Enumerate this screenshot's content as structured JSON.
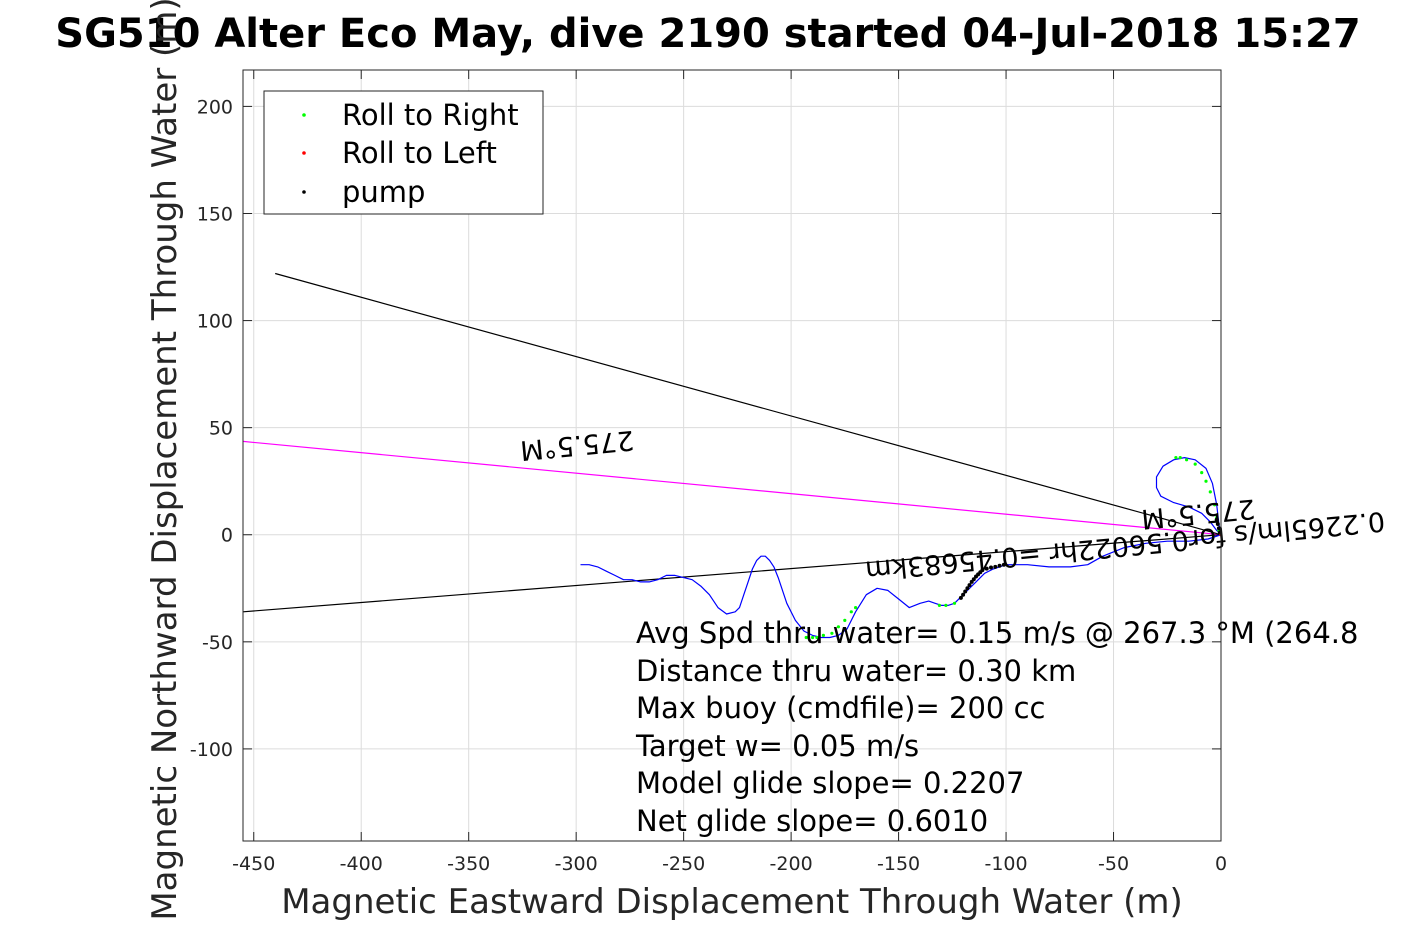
{
  "chart_data": {
    "type": "scatter",
    "title": "SG510 Alter Eco May, dive 2190 started 04-Jul-2018 15:27",
    "xlabel": "Magnetic Eastward Displacement Through Water (m)",
    "ylabel": "Magnetic Northward Displacement Through Water (m)",
    "xlim": [
      -455,
      0
    ],
    "ylim": [
      -143,
      217
    ],
    "xticks": [
      -450,
      -400,
      -350,
      -300,
      -250,
      -200,
      -150,
      -100,
      -50,
      0
    ],
    "yticks": [
      -100,
      -50,
      0,
      50,
      100,
      150,
      200
    ],
    "grid": true,
    "legend_location": "top-left",
    "legend": [
      {
        "label": "Roll to Right",
        "color": "#00ff00"
      },
      {
        "label": "Roll to Left",
        "color": "#ff0000"
      },
      {
        "label": "pump",
        "color": "#000000"
      }
    ],
    "track": {
      "color": "#0000ff",
      "x": [
        0,
        -2,
        -5,
        -9,
        -15,
        -22,
        -28,
        -30,
        -30,
        -27,
        -22,
        -17,
        -12,
        -7,
        -4,
        -2,
        -1,
        0,
        -6,
        -15,
        -25,
        -35,
        -45,
        -55,
        -62,
        -70,
        -80,
        -90,
        -100,
        -106,
        -110,
        -114,
        -118,
        -121,
        -124,
        -127,
        -130,
        -133,
        -136,
        -140,
        -145,
        -150,
        -155,
        -160,
        -165,
        -170,
        -174,
        -178,
        -182,
        -186,
        -190,
        -194,
        -198,
        -202,
        -206,
        -208,
        -210,
        -212,
        -214,
        -216,
        -218,
        -220,
        -222,
        -224,
        -226,
        -230,
        -234,
        -238,
        -242,
        -246,
        -250,
        -254,
        -258,
        -262,
        -266,
        -270,
        -274,
        -278,
        -282,
        -286,
        -290,
        -294,
        -298
      ],
      "y": [
        0,
        2,
        6,
        10,
        13,
        15,
        18,
        22,
        27,
        32,
        35,
        36,
        35,
        31,
        24,
        14,
        5,
        0,
        -2,
        -3,
        -3,
        -4,
        -6,
        -10,
        -14,
        -15,
        -15,
        -14,
        -14,
        -16,
        -18,
        -22,
        -26,
        -29,
        -32,
        -33,
        -33,
        -32,
        -31,
        -32,
        -34,
        -30,
        -26,
        -25,
        -28,
        -36,
        -44,
        -47,
        -48,
        -48,
        -47,
        -45,
        -40,
        -32,
        -20,
        -15,
        -12,
        -10,
        -10,
        -12,
        -16,
        -22,
        -28,
        -34,
        -36,
        -37,
        -34,
        -28,
        -24,
        -21,
        -20,
        -19,
        -19,
        -21,
        -22,
        -22,
        -21,
        -21,
        -19,
        -17,
        -15,
        -14,
        -14
      ]
    },
    "roll_right": {
      "color": "#00ff00",
      "x": [
        -1,
        -2,
        -3,
        -5,
        -7,
        -9,
        -12,
        -16,
        -19,
        -21,
        -124,
        -128,
        -131,
        -170,
        -172,
        -175,
        -178,
        -181,
        -185,
        -188,
        -190,
        -193
      ],
      "y": [
        2,
        8,
        14,
        20,
        25,
        29,
        33,
        35,
        36,
        36,
        -32,
        -33,
        -33,
        -34,
        -36,
        -40,
        -43,
        -46,
        -47,
        -48,
        -48,
        -48
      ]
    },
    "roll_left": {
      "color": "#ff0000",
      "x": [
        0
      ],
      "y": [
        0
      ]
    },
    "pump": {
      "color": "#000000",
      "x": [
        -0.5,
        -1,
        -1.5,
        -2,
        -101,
        -103,
        -105,
        -107,
        -109,
        -111,
        -112,
        -113,
        -114,
        -115,
        -116,
        -117,
        -118,
        -119,
        -120,
        -121
      ],
      "y": [
        1,
        3,
        5,
        7,
        -14,
        -14.5,
        -15,
        -15.3,
        -15.8,
        -16.5,
        -17.5,
        -18.5,
        -19.5,
        -20.8,
        -22,
        -23.5,
        -25,
        -26.5,
        -28,
        -29.5
      ]
    },
    "reference_lines": [
      {
        "name": "current",
        "color": "#ff00ff",
        "x": [
          0,
          -455
        ],
        "y": [
          0,
          43.6
        ]
      },
      {
        "name": "heading_upper",
        "color": "#000000",
        "x": [
          0,
          -440
        ],
        "y": [
          0,
          122
        ]
      },
      {
        "name": "heading_lower",
        "color": "#000000",
        "x": [
          0,
          -455
        ],
        "y": [
          0,
          -36
        ]
      }
    ],
    "flipped_labels": [
      {
        "text": "275.5°M",
        "x": -300,
        "y": 46,
        "rotation_deg": 174.5
      },
      {
        "text": "275.5°M",
        "x": -11,
        "y": 14,
        "rotation_deg": 174.5
      },
      {
        "text": "0.2265lm/s for0.56022hr =0.45683km",
        "x": -45,
        "y": -1,
        "rotation_deg": 174.5
      }
    ],
    "annotations": [
      "Avg Spd thru water=  0.15 m/s @ 267.3 °M (264.8",
      "Distance thru water=  0.30 km",
      "Max buoy (cmdfile)= 200 cc",
      "Target w= 0.05 m/s",
      "Model glide slope= 0.2207",
      "Net glide slope= 0.6010"
    ]
  }
}
